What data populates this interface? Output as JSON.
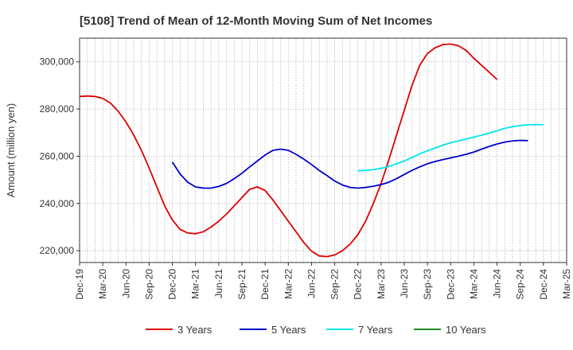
{
  "chart_data": {
    "type": "line",
    "title": "[5108]  Trend of Mean of 12-Month Moving Sum of Net Incomes",
    "xlabel": "",
    "ylabel": "Amount (million yen)",
    "ylim": [
      215000,
      310000
    ],
    "y_ticks": [
      220000,
      240000,
      260000,
      280000,
      300000
    ],
    "y_tick_labels": [
      "220,000",
      "240,000",
      "260,000",
      "280,000",
      "300,000"
    ],
    "x_tick_labels": [
      "Dec-19",
      "Mar-20",
      "Jun-20",
      "Sep-20",
      "Dec-20",
      "Mar-21",
      "Jun-21",
      "Sep-21",
      "Dec-21",
      "Mar-22",
      "Jun-22",
      "Sep-22",
      "Dec-22",
      "Mar-23",
      "Jun-23",
      "Sep-23",
      "Dec-23",
      "Mar-24",
      "Jun-24",
      "Sep-24",
      "Dec-24",
      "Mar-25"
    ],
    "grid": true,
    "legend_position": "bottom",
    "series": [
      {
        "name": "3 Years",
        "color": "#dd0000",
        "start_index": 0,
        "values": [
          285300,
          285500,
          285300,
          284500,
          282500,
          279000,
          274500,
          269000,
          262500,
          255000,
          247000,
          239000,
          233000,
          229000,
          227500,
          227200,
          228000,
          230000,
          232500,
          235500,
          239000,
          242500,
          246000,
          247000,
          245500,
          241500,
          237000,
          232500,
          228000,
          223500,
          219800,
          217800,
          217500,
          218200,
          220000,
          222800,
          226800,
          232500,
          240000,
          248500,
          258500,
          269000,
          279500,
          290000,
          298500,
          303500,
          306000,
          307300,
          307500,
          306800,
          304800,
          301500,
          298500,
          295500,
          292500
        ]
      },
      {
        "name": "5 Years",
        "color": "#0000cc",
        "start_index": 12,
        "values": [
          257500,
          252500,
          249000,
          247000,
          246500,
          246500,
          247200,
          248500,
          250500,
          252800,
          255500,
          258000,
          260500,
          262500,
          263000,
          262500,
          260800,
          258800,
          256500,
          254000,
          251800,
          249500,
          247800,
          246800,
          246500,
          246800,
          247300,
          248000,
          249000,
          250500,
          252300,
          254000,
          255500,
          256800,
          257800,
          258600,
          259300,
          260000,
          260800,
          261800,
          263000,
          264200,
          265200,
          266000,
          266500,
          266700,
          266600
        ]
      },
      {
        "name": "7 Years",
        "color": "#00e5ee",
        "start_index": 36,
        "values": [
          253800,
          254000,
          254300,
          254900,
          255700,
          256800,
          258000,
          259500,
          261000,
          262300,
          263500,
          264700,
          265700,
          266500,
          267300,
          268100,
          268900,
          269800,
          270800,
          271800,
          272500,
          273000,
          273300,
          273400,
          273300
        ]
      },
      {
        "name": "10 Years",
        "color": "#228b22",
        "start_index": 0,
        "values": []
      }
    ]
  }
}
